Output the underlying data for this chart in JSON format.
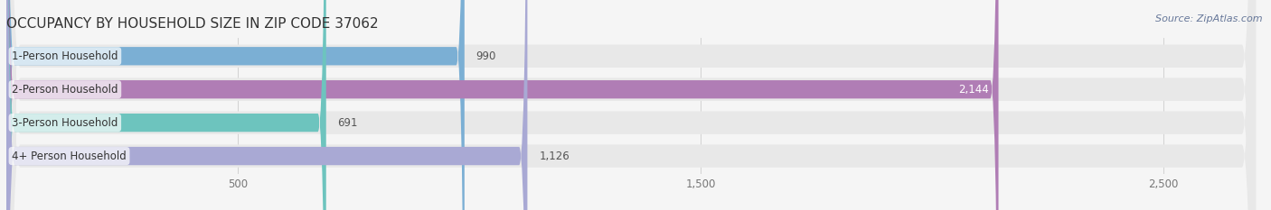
{
  "title": "OCCUPANCY BY HOUSEHOLD SIZE IN ZIP CODE 37062",
  "source": "Source: ZipAtlas.com",
  "categories": [
    "1-Person Household",
    "2-Person Household",
    "3-Person Household",
    "4+ Person Household"
  ],
  "values": [
    990,
    2144,
    691,
    1126
  ],
  "bar_colors": [
    "#7bafd4",
    "#b07db5",
    "#6dc4be",
    "#a9a9d4"
  ],
  "xlim": [
    0,
    2700
  ],
  "xticks": [
    500,
    1500,
    2500
  ],
  "xticklabels": [
    "500",
    "1,500",
    "2,500"
  ],
  "background_color": "#f5f5f5",
  "bar_background_color": "#e8e8e8",
  "title_fontsize": 11,
  "label_fontsize": 8.5,
  "value_fontsize": 8.5,
  "source_fontsize": 8,
  "bar_height": 0.55,
  "bar_gap": 1.0
}
